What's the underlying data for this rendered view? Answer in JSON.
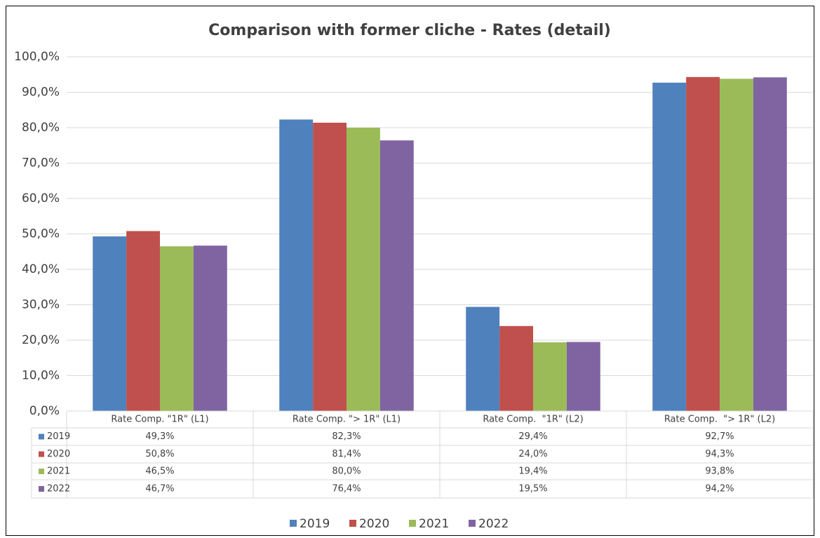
{
  "chart_data": {
    "type": "bar",
    "title": "Comparison with former cliche - Rates (detail)",
    "categories": [
      "Rate Comp. \"1R\" (L1)",
      "Rate Comp. \"> 1R\" (L1)",
      "Rate Comp.  \"1R\" (L2)",
      "Rate Comp.  \"> 1R\" (L2)"
    ],
    "series": [
      {
        "name": "2019",
        "color": "#4f81bd",
        "values": [
          49.3,
          82.3,
          29.4,
          92.7
        ],
        "value_labels": [
          "49,3%",
          "82,3%",
          "29,4%",
          "92,7%"
        ]
      },
      {
        "name": "2020",
        "color": "#c0504d",
        "values": [
          50.8,
          81.4,
          24.0,
          94.3
        ],
        "value_labels": [
          "50,8%",
          "81,4%",
          "24,0%",
          "94,3%"
        ]
      },
      {
        "name": "2021",
        "color": "#9bbb59",
        "values": [
          46.5,
          80.0,
          19.4,
          93.8
        ],
        "value_labels": [
          "46,5%",
          "80,0%",
          "19,4%",
          "93,8%"
        ]
      },
      {
        "name": "2022",
        "color": "#8064a2",
        "values": [
          46.7,
          76.4,
          19.5,
          94.2
        ],
        "value_labels": [
          "46,7%",
          "76,4%",
          "19,5%",
          "94,2%"
        ]
      }
    ],
    "ylim": [
      0,
      100
    ],
    "yticks": [
      {
        "value": 0,
        "label": "0,0%"
      },
      {
        "value": 10,
        "label": "10,0%"
      },
      {
        "value": 20,
        "label": "20,0%"
      },
      {
        "value": 30,
        "label": "30,0%"
      },
      {
        "value": 40,
        "label": "40,0%"
      },
      {
        "value": 50,
        "label": "50,0%"
      },
      {
        "value": 60,
        "label": "60,0%"
      },
      {
        "value": 70,
        "label": "70,0%"
      },
      {
        "value": 80,
        "label": "80,0%"
      },
      {
        "value": 90,
        "label": "90,0%"
      },
      {
        "value": 100,
        "label": "100,0%"
      }
    ],
    "grid": true,
    "legend": "bottom"
  }
}
